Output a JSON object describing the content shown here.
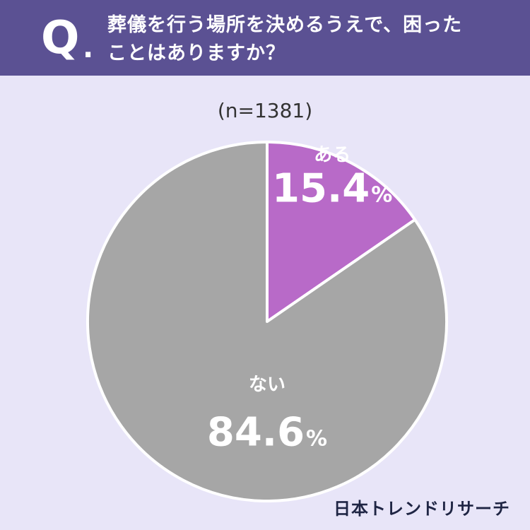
{
  "header": {
    "q_letter": "Q",
    "q_dot": ".",
    "question_line1": "葬儀を行う場所を決めるうえで、困った",
    "question_line2": "ことはありますか？"
  },
  "sample_label": "(n=1381)",
  "brand": "日本トレンドリサーチ",
  "colors": {
    "header": "#5b5193",
    "background": "#e8e5f8",
    "yes": "#b86ac8",
    "no": "#a6a6a6"
  },
  "chart_data": {
    "type": "pie",
    "slices": [
      {
        "label": "ある",
        "value": 15.4,
        "display": "15.4",
        "unit": "%",
        "color": "#b86ac8"
      },
      {
        "label": "ない",
        "value": 84.6,
        "display": "84.6",
        "unit": "%",
        "color": "#a6a6a6"
      }
    ],
    "start_angle": "12 o'clock",
    "direction": "clockwise"
  }
}
